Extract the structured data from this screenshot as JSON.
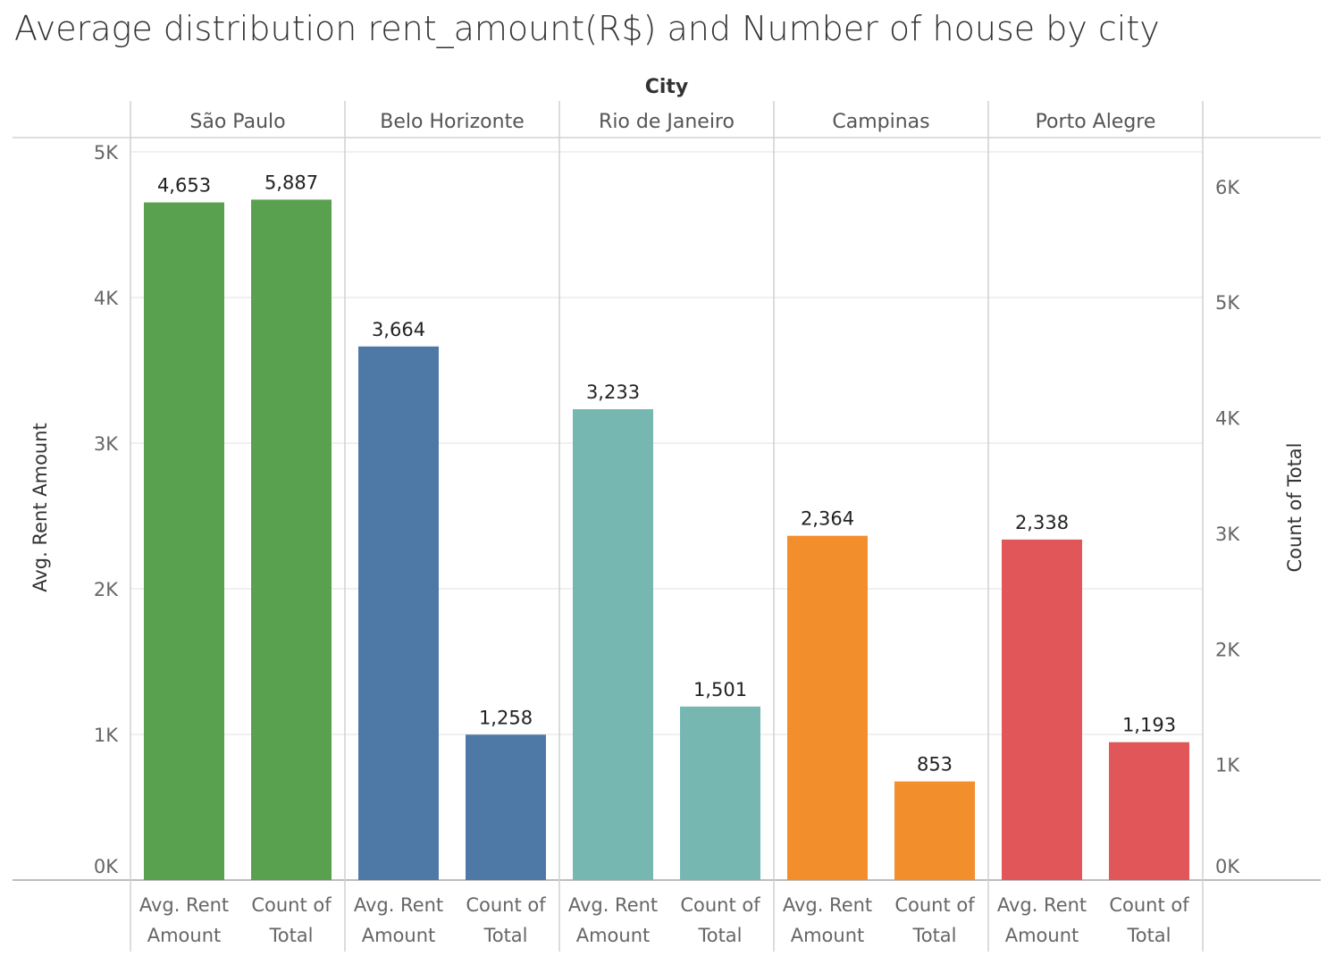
{
  "chart_data": {
    "type": "bar",
    "title": "Average distribution rent_amount(R$) and Number of house by city",
    "column_header": "City",
    "cities": [
      {
        "name": "São Paulo",
        "color": "#59a14f",
        "avg_rent_label": "4,653",
        "count_label": "5,887"
      },
      {
        "name": "Belo Horizonte",
        "color": "#4e79a7",
        "avg_rent_label": "3,664",
        "count_label": "1,258"
      },
      {
        "name": "Rio de Janeiro",
        "color": "#76b7b2",
        "avg_rent_label": "3,233",
        "count_label": "1,501"
      },
      {
        "name": "Campinas",
        "color": "#f28e2b",
        "avg_rent_label": "2,364",
        "count_label": "853"
      },
      {
        "name": "Porto Alegre",
        "color": "#e15759",
        "avg_rent_label": "2,338",
        "count_label": "1,193"
      }
    ],
    "series": [
      {
        "name": "Avg. Rent Amount",
        "axis": "left",
        "values": [
          4653,
          3664,
          3233,
          2364,
          2338
        ]
      },
      {
        "name": "Count of Total",
        "axis": "right",
        "values": [
          5887,
          1258,
          1501,
          853,
          1193
        ]
      }
    ],
    "measure_labels": [
      [
        "Avg. Rent",
        "Amount"
      ],
      [
        "Count of",
        "Total"
      ]
    ],
    "left_axis": {
      "title": "Avg. Rent Amount",
      "range": [
        0,
        5000
      ],
      "ticks": [
        0,
        1000,
        2000,
        3000,
        4000,
        5000
      ],
      "tick_labels": [
        "0K",
        "1K",
        "2K",
        "3K",
        "4K",
        "5K"
      ]
    },
    "right_axis": {
      "title": "Count of Total",
      "range": [
        0,
        6300
      ],
      "ticks": [
        0,
        1000,
        2000,
        3000,
        4000,
        5000,
        6000
      ],
      "tick_labels": [
        "0K",
        "1K",
        "2K",
        "3K",
        "4K",
        "5K",
        "6K"
      ]
    },
    "grid": true
  }
}
